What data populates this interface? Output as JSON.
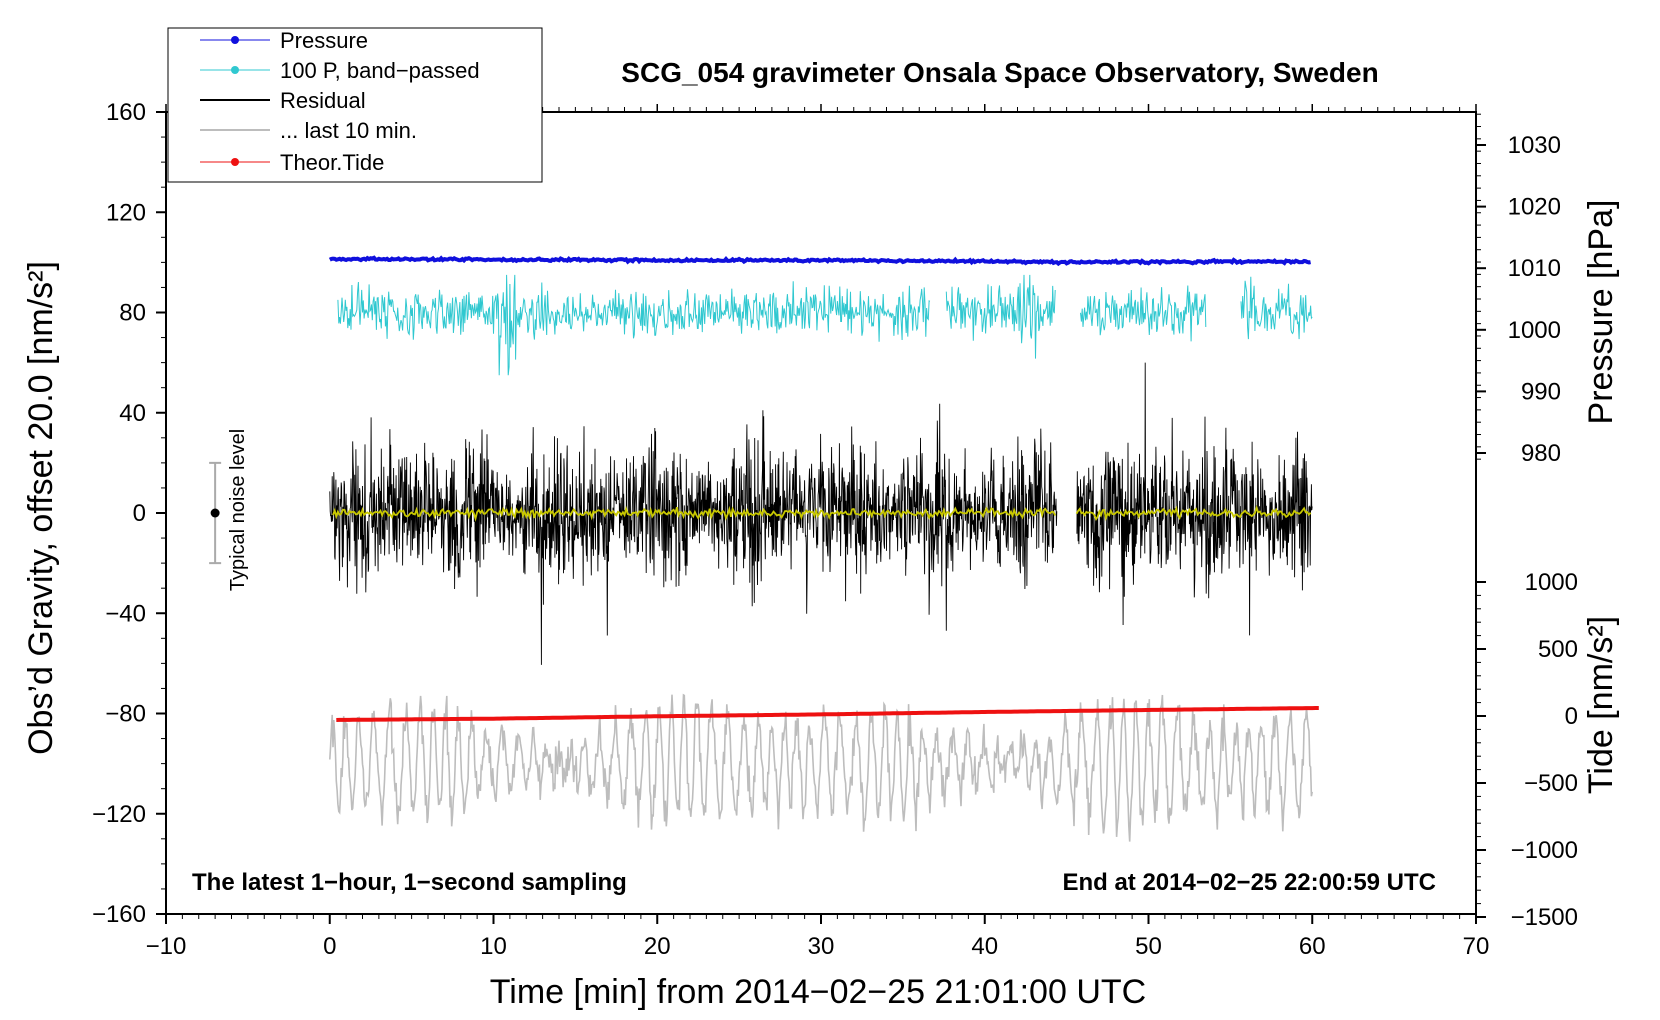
{
  "chart_data": {
    "type": "line",
    "title": "SCG_054 gravimeter Onsala Space Observatory, Sweden",
    "xlabel": "Time [min] from 2014−02−25 21:01:00 UTC",
    "ylabel_left": "Obs’d Gravity, offset 20.0 [nm/s²]",
    "ylabel_pressure": "Pressure [hPa]",
    "ylabel_tide": "Tide [nm/s²]",
    "xlim": [
      -10,
      70
    ],
    "ylim": [
      -160,
      160
    ],
    "x_ticks": [
      -10,
      0,
      10,
      20,
      30,
      40,
      50,
      60,
      70
    ],
    "x_tick_labels": [
      "−10",
      "0",
      "10",
      "20",
      "30",
      "40",
      "50",
      "60",
      "70"
    ],
    "y_ticks": [
      160,
      120,
      80,
      40,
      0,
      -40,
      -80,
      -120,
      -160
    ],
    "y_tick_labels": [
      "160",
      "120",
      "80",
      "40",
      "0",
      "−40",
      "−80",
      "−120",
      "−160"
    ],
    "pressure_ticks": [
      1030,
      1020,
      1010,
      1000,
      990,
      980
    ],
    "pressure_tick_labels": [
      "1030",
      "1020",
      "1010",
      "1000",
      "990",
      "980"
    ],
    "tide_ticks": [
      1000,
      500,
      0,
      -500,
      -1000,
      -1500
    ],
    "tide_tick_labels": [
      "1000",
      "500",
      "0",
      "−500",
      "−1000",
      "−1500"
    ],
    "legend": [
      "Pressure",
      "100 P, band−passed",
      "Residual",
      "... last 10 min.",
      "Theor.Tide"
    ],
    "legend_position": "top-left",
    "annotations": {
      "noise": "Typical noise level",
      "bottom_left": "The latest 1−hour, 1−second sampling",
      "bottom_right": "End at 2014−02−25 22:00:59 UTC"
    },
    "series": [
      {
        "name": "Pressure",
        "unit": "hPa",
        "x": [
          0,
          10,
          20,
          30,
          40,
          45,
          50,
          60
        ],
        "values": [
          1011.5,
          1011.4,
          1011.3,
          1011.3,
          1011.1,
          1011.0,
          1011.0,
          1011.1
        ]
      },
      {
        "name": "100 P, band−passed",
        "offset_nm_s2": 80,
        "range_nm_s2": [
          55,
          95
        ],
        "gaps_min": [
          [
            36.7,
            37.6
          ],
          [
            44.3,
            45.8
          ],
          [
            53.5,
            55.6
          ]
        ]
      },
      {
        "name": "Residual",
        "offset_nm_s2": 0,
        "range_nm_s2": [
          -62,
          60
        ],
        "gaps_min": [
          [
            44.4,
            45.6
          ]
        ]
      },
      {
        "name": "... last 10 min.",
        "offset_nm_s2": -100,
        "range_nm_s2": [
          -142,
          -62
        ]
      },
      {
        "name": "Theor.Tide",
        "unit": "nm/s²",
        "x": [
          0,
          10,
          20,
          30,
          40,
          50,
          60.5
        ],
        "values": [
          -30,
          -20,
          -2,
          12,
          30,
          45,
          60
        ]
      }
    ],
    "noise_level": {
      "x": -7,
      "center": 0,
      "range": [
        -20,
        20
      ]
    }
  },
  "colors": {
    "pressure": "#1010dd",
    "bandpassed": "#30c8d0",
    "residual": "#000000",
    "last10": "#bdbdbd",
    "tide": "#ee1111",
    "smoothed": "#c8c800"
  }
}
